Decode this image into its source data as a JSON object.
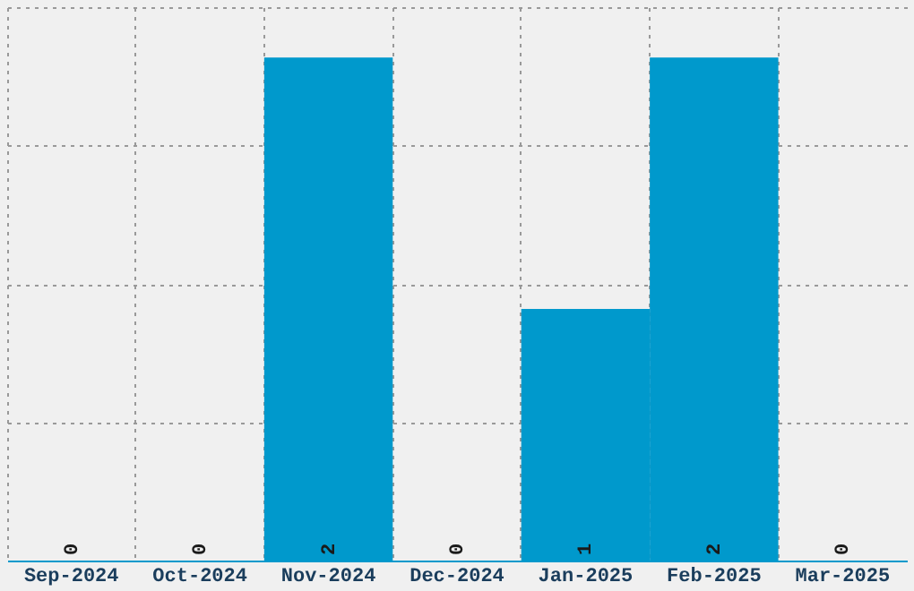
{
  "chart_data": {
    "type": "bar",
    "categories": [
      "Sep-2024",
      "Oct-2024",
      "Nov-2024",
      "Dec-2024",
      "Jan-2025",
      "Feb-2025",
      "Mar-2025"
    ],
    "values": [
      0,
      0,
      2,
      0,
      1,
      2,
      0
    ],
    "color": "#0099cc",
    "ylim": [
      0,
      2.2
    ],
    "yticks": [
      {
        "value": 0,
        "label": null
      },
      {
        "value": 0.55,
        "label": null
      },
      {
        "value": 1.1,
        "label": null
      },
      {
        "value": 1.65,
        "label": null
      },
      {
        "value": 2.2,
        "label": null
      }
    ],
    "tick_labels": "x",
    "grid": true,
    "data_labels": true
  }
}
